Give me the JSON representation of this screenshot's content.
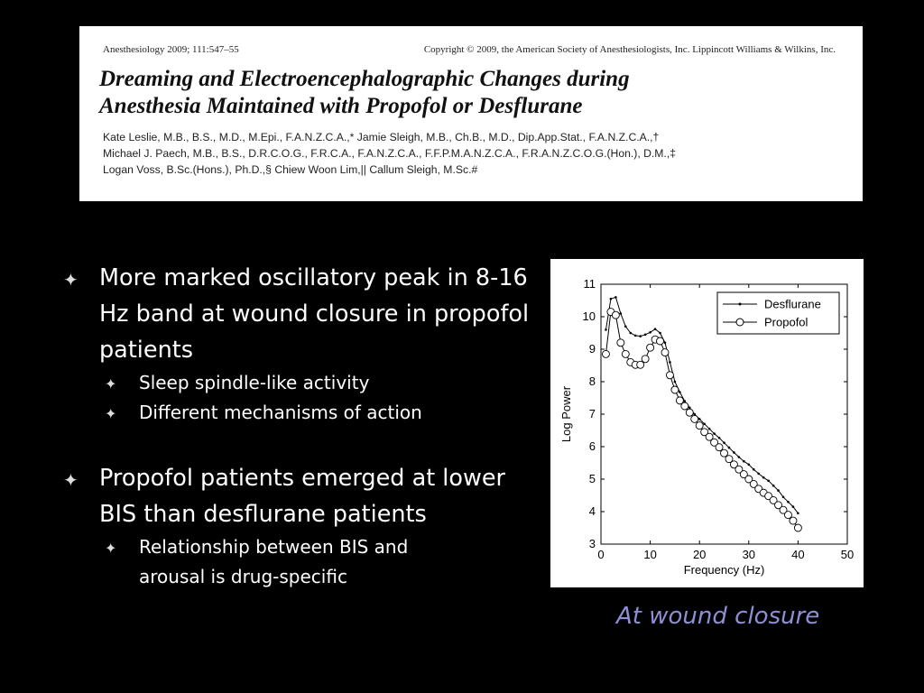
{
  "header": {
    "journal": "Anesthesiology 2009; 111:547–55",
    "copyright": "Copyright © 2009, the American Society of Anesthesiologists, Inc. Lippincott Williams & Wilkins, Inc.",
    "title_line1": "Dreaming and Electroencephalographic Changes during",
    "title_line2": "Anesthesia Maintained with Propofol or Desflurane",
    "authors_line1": "Kate Leslie, M.B., B.S., M.D., M.Epi., F.A.N.Z.C.A.,* Jamie Sleigh, M.B., Ch.B., M.D., Dip.App.Stat., F.A.N.Z.C.A.,†",
    "authors_line2": "Michael J. Paech, M.B., B.S., D.R.C.O.G., F.R.C.A., F.A.N.Z.C.A., F.F.P.M.A.N.Z.C.A., F.R.A.N.Z.C.O.G.(Hon.), D.M.,‡",
    "authors_line3": "Logan Voss, B.Sc.(Hons.), Ph.D.,§ Chiew Woon Lim,|| Callum Sleigh, M.Sc.#"
  },
  "bullets": {
    "b1": "More marked oscillatory peak in 8-16 Hz band at wound closure in propofol patients",
    "b1_sub1": "Sleep spindle-like activity",
    "b1_sub2": "Different mechanisms of action",
    "b2": "Propofol patients emerged at lower BIS than desflurane patients",
    "b2_sub1": "Relationship between BIS and arousal is drug-specific"
  },
  "caption": "At wound closure",
  "colors": {
    "caption": "#8f8fd6",
    "background": "#000000"
  },
  "chart_data": {
    "type": "line",
    "title": "",
    "xlabel": "Frequency (Hz)",
    "ylabel": "Log Power",
    "xlim": [
      0,
      50
    ],
    "ylim": [
      3,
      11
    ],
    "xticks": [
      0,
      10,
      20,
      30,
      40,
      50
    ],
    "yticks": [
      3,
      4,
      5,
      6,
      7,
      8,
      9,
      10,
      11
    ],
    "legend_position": "top-right",
    "series": [
      {
        "name": "Desflurane",
        "marker": "dot",
        "x": [
          1,
          2,
          3,
          4,
          5,
          6,
          7,
          8,
          9,
          10,
          11,
          12,
          13,
          14,
          15,
          16,
          17,
          18,
          19,
          20,
          21,
          22,
          23,
          24,
          25,
          26,
          27,
          28,
          29,
          30,
          31,
          32,
          33,
          34,
          35,
          36,
          37,
          38,
          39,
          40
        ],
        "y": [
          9.6,
          10.55,
          10.6,
          10.1,
          9.7,
          9.5,
          9.42,
          9.4,
          9.45,
          9.52,
          9.62,
          9.5,
          9.2,
          8.6,
          8.0,
          7.68,
          7.4,
          7.2,
          7.0,
          6.85,
          6.7,
          6.55,
          6.4,
          6.27,
          6.12,
          5.97,
          5.82,
          5.68,
          5.55,
          5.45,
          5.3,
          5.17,
          5.05,
          4.95,
          4.8,
          4.65,
          4.45,
          4.3,
          4.15,
          3.95
        ]
      },
      {
        "name": "Propofol",
        "marker": "circle",
        "x": [
          1,
          2,
          3,
          4,
          5,
          6,
          7,
          8,
          9,
          10,
          11,
          12,
          13,
          14,
          15,
          16,
          17,
          18,
          19,
          20,
          21,
          22,
          23,
          24,
          25,
          26,
          27,
          28,
          29,
          30,
          31,
          32,
          33,
          34,
          35,
          36,
          37,
          38,
          39,
          40
        ],
        "y": [
          8.85,
          10.15,
          10.05,
          9.2,
          8.85,
          8.6,
          8.52,
          8.52,
          8.7,
          9.05,
          9.3,
          9.25,
          8.9,
          8.2,
          7.75,
          7.42,
          7.25,
          7.05,
          6.85,
          6.65,
          6.45,
          6.3,
          6.13,
          5.98,
          5.8,
          5.62,
          5.45,
          5.3,
          5.15,
          5.0,
          4.85,
          4.7,
          4.58,
          4.48,
          4.35,
          4.2,
          4.05,
          3.9,
          3.72,
          3.5
        ]
      }
    ]
  }
}
